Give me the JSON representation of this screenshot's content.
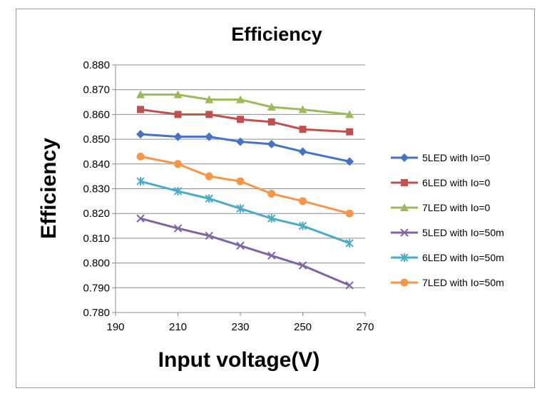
{
  "chart_data": {
    "type": "line",
    "title": "Efficiency",
    "xlabel": "Input voltage(V)",
    "ylabel": "Efficiency",
    "xlim": [
      190,
      270
    ],
    "ylim": [
      0.78,
      0.88
    ],
    "xticks": [
      "190",
      "210",
      "230",
      "250",
      "270"
    ],
    "yticks": [
      "0.780",
      "0.790",
      "0.800",
      "0.810",
      "0.820",
      "0.830",
      "0.840",
      "0.850",
      "0.860",
      "0.870",
      "0.880"
    ],
    "grid": "horizontal",
    "legend": "right",
    "x": [
      198,
      210,
      220,
      230,
      240,
      250,
      265
    ],
    "series": [
      {
        "name": "5LED with Io=0",
        "color": "#4472c4",
        "marker": "diamond",
        "values": [
          0.852,
          0.851,
          0.851,
          0.849,
          0.848,
          0.845,
          0.841
        ]
      },
      {
        "name": "6LED with Io=0",
        "color": "#c0504d",
        "marker": "square",
        "values": [
          0.862,
          0.86,
          0.86,
          0.858,
          0.857,
          0.854,
          0.853
        ]
      },
      {
        "name": "7LED with Io=0",
        "color": "#9bbb59",
        "marker": "triangle",
        "values": [
          0.868,
          0.868,
          0.866,
          0.866,
          0.863,
          0.862,
          0.86
        ]
      },
      {
        "name": "5LED with Io=50m",
        "color": "#8064a2",
        "marker": "x",
        "values": [
          0.818,
          0.814,
          0.811,
          0.807,
          0.803,
          0.799,
          0.791
        ]
      },
      {
        "name": "6LED with Io=50m",
        "color": "#4bacc6",
        "marker": "star",
        "values": [
          0.833,
          0.829,
          0.826,
          0.822,
          0.818,
          0.815,
          0.808
        ]
      },
      {
        "name": "7LED with Io=50m",
        "color": "#f79646",
        "marker": "circle",
        "values": [
          0.843,
          0.84,
          0.835,
          0.833,
          0.828,
          0.825,
          0.82
        ]
      }
    ]
  }
}
